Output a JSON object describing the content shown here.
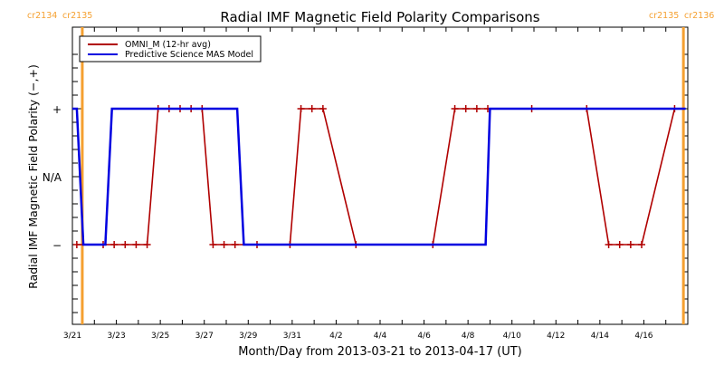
{
  "chart_data": {
    "type": "line",
    "title": "Radial IMF Magnetic Field Polarity Comparisons",
    "xlabel": "Month/Day from 2013-03-21 to 2013-04-17 (UT)",
    "ylabel": "Radial IMF Magnetic Field Polarity (−,+)",
    "x_unit": "days since 2013-03-21",
    "xlim": [
      0,
      28
    ],
    "ylim": [
      -1.6,
      1.6
    ],
    "x_ticks": [
      {
        "x": 0,
        "label": "3/21"
      },
      {
        "x": 2,
        "label": "3/23"
      },
      {
        "x": 4,
        "label": "3/25"
      },
      {
        "x": 6,
        "label": "3/27"
      },
      {
        "x": 8,
        "label": "3/29"
      },
      {
        "x": 10,
        "label": "3/31"
      },
      {
        "x": 12,
        "label": "4/2"
      },
      {
        "x": 14,
        "label": "4/4"
      },
      {
        "x": 16,
        "label": "4/6"
      },
      {
        "x": 18,
        "label": "4/8"
      },
      {
        "x": 20,
        "label": "4/10"
      },
      {
        "x": 22,
        "label": "4/12"
      },
      {
        "x": 24,
        "label": "4/14"
      },
      {
        "x": 26,
        "label": "4/16"
      }
    ],
    "y_ticks": [
      {
        "y": 1,
        "label": "+"
      },
      {
        "y": 0,
        "label": "N/A"
      },
      {
        "y": -1,
        "label": "−"
      }
    ],
    "legend": {
      "placement": "top-left",
      "entries": [
        {
          "name": "OMNI_M (12-hr avg)",
          "color": "#b00000"
        },
        {
          "name": "Predictive Science MAS Model",
          "color": "#0000e0"
        }
      ]
    },
    "series": [
      {
        "name": "OMNI_M (12-hr avg)",
        "color": "#b00000",
        "markers": true,
        "x": [
          0.2,
          1.4,
          1.9,
          2.4,
          2.9,
          3.4,
          3.9,
          4.4,
          4.9,
          5.4,
          5.9,
          6.4,
          6.9,
          7.4,
          8.4,
          9.9,
          10.4,
          10.9,
          11.4,
          12.9,
          16.4,
          17.4,
          17.9,
          18.4,
          18.9,
          20.9,
          23.4,
          24.4,
          24.9,
          25.4,
          25.9,
          27.4
        ],
        "y": [
          -1,
          -1,
          -1,
          -1,
          -1,
          -1,
          1,
          1,
          1,
          1,
          1,
          -1,
          -1,
          -1,
          -1,
          -1,
          1,
          1,
          1,
          -1,
          -1,
          1,
          1,
          1,
          1,
          1,
          1,
          -1,
          -1,
          -1,
          -1,
          1
        ]
      },
      {
        "name": "Predictive Science MAS Model",
        "color": "#0000e0",
        "markers": false,
        "x": [
          0.0,
          0.2,
          0.5,
          1.5,
          1.8,
          7.5,
          7.8,
          18.8,
          19.0,
          27.9
        ],
        "y": [
          1,
          1,
          -1,
          -1,
          1,
          1,
          -1,
          -1,
          1,
          1
        ]
      }
    ],
    "carrington_markers": [
      {
        "x": 0.45,
        "label_left": "cr2134",
        "label_right": "cr2135",
        "color": "#f5a030"
      },
      {
        "x": 27.8,
        "label_left": "cr2135",
        "label_right": "cr2136",
        "color": "#f5a030"
      }
    ]
  }
}
